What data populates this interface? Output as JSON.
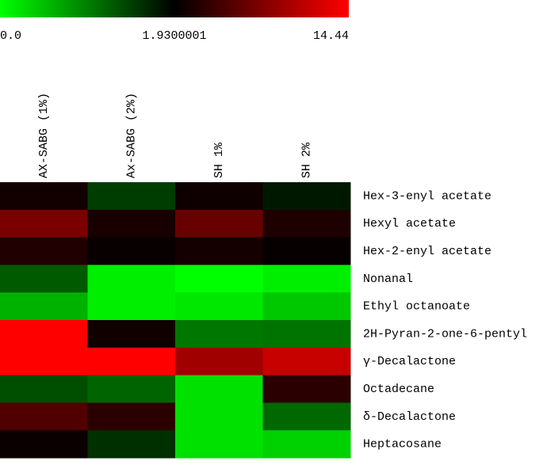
{
  "chart_data": {
    "type": "heatmap",
    "x_categories": [
      "AX-SABG (1%)",
      "Ax-SABG (2%)",
      "SH 1%",
      "SH 2%"
    ],
    "y_categories": [
      "Hex-3-enyl acetate",
      "Hexyl acetate",
      "Hex-2-enyl acetate",
      "Nonanal",
      "Ethyl octanoate",
      "2H-Pyran-2-one-6-pentyl",
      "γ-Decalactone",
      "Octadecane",
      "δ-Decalactone",
      "Heptacosane"
    ],
    "values": [
      [
        2.8,
        1.47,
        2.6,
        1.75
      ],
      [
        7.9,
        3.1,
        7.1,
        3.4
      ],
      [
        3.5,
        2.3,
        2.9,
        2.2
      ],
      [
        1.25,
        0.12,
        0.0,
        0.12
      ],
      [
        0.58,
        0.12,
        0.18,
        0.42
      ],
      [
        14.44,
        2.7,
        1.02,
        1.05
      ],
      [
        14.44,
        14.44,
        9.8,
        11.7
      ],
      [
        1.33,
        1.17,
        0.23,
        4.0
      ],
      [
        5.9,
        4.0,
        0.23,
        1.14
      ],
      [
        2.4,
        1.57,
        0.23,
        0.35
      ]
    ],
    "colorscale": [
      {
        "value": 0,
        "color": "#00ff00"
      },
      {
        "value": 1.9300001,
        "color": "#000000"
      },
      {
        "value": 14.44,
        "color": "#ff0000"
      }
    ],
    "colorbar_ticks": [
      {
        "value": 0,
        "label": "0.0"
      },
      1.9300001,
      14.44
    ]
  }
}
